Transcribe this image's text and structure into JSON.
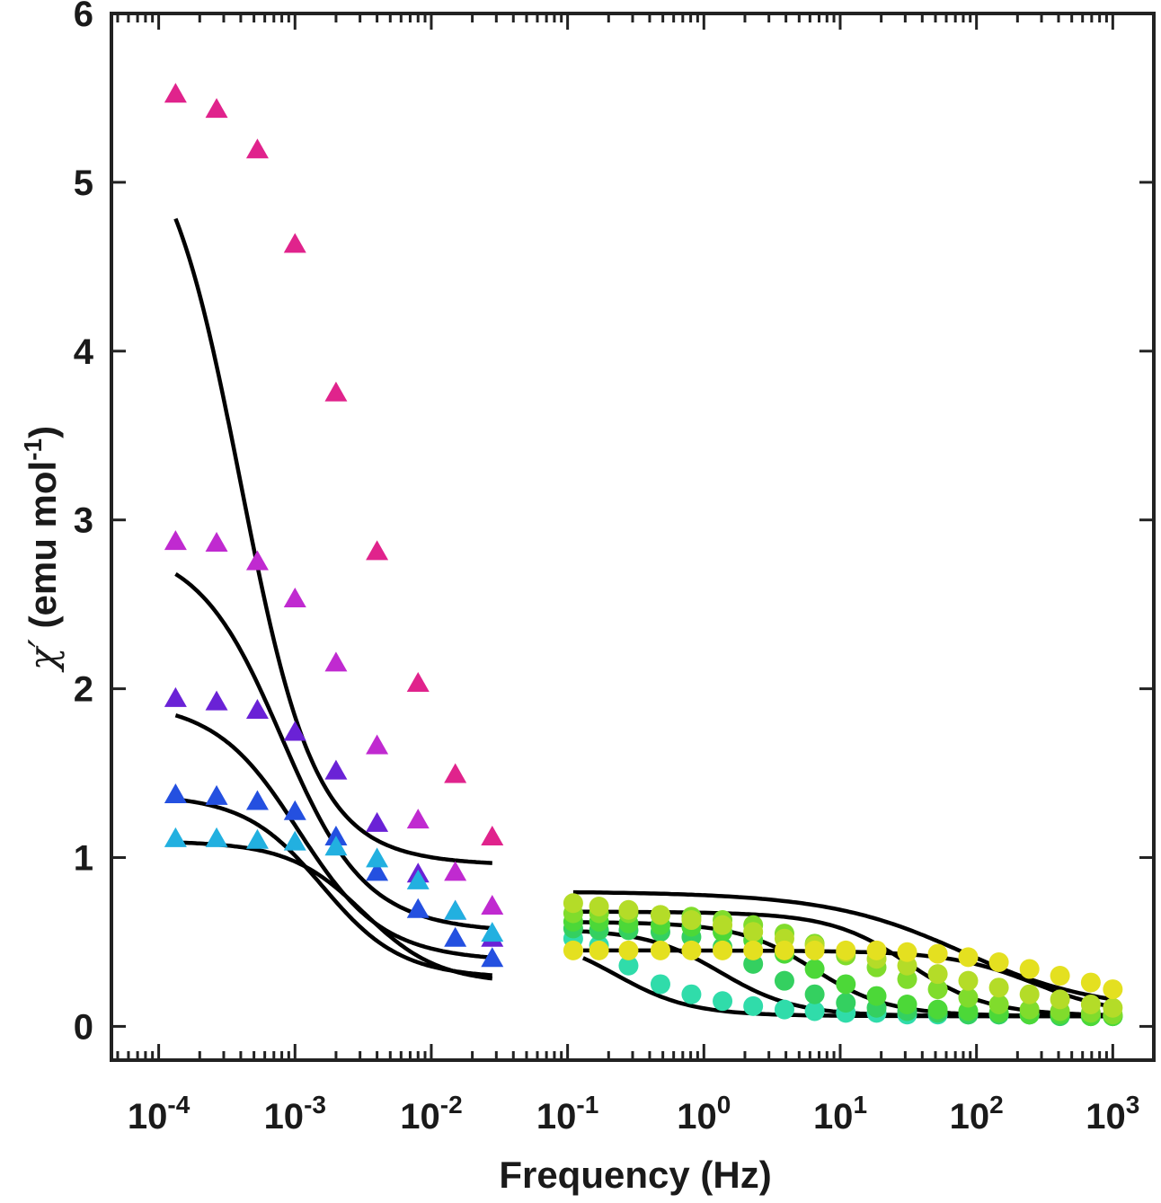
{
  "chart_data": {
    "type": "scatter",
    "x_scale": "log",
    "xlim": [
      4.5e-05,
      2000
    ],
    "ylim": [
      -0.2,
      6.0
    ],
    "xlabel": "Frequency (Hz)",
    "ylabel": {
      "symbol": "χ",
      "prime": "′",
      "text": " (emu mol",
      "sup": "-1",
      "close": ")"
    },
    "x_ticks": [
      {
        "value": 0.0001,
        "base": "10",
        "exp": "-4"
      },
      {
        "value": 0.001,
        "base": "10",
        "exp": "-3"
      },
      {
        "value": 0.01,
        "base": "10",
        "exp": "-2"
      },
      {
        "value": 0.1,
        "base": "10",
        "exp": "-1"
      },
      {
        "value": 1,
        "base": "10",
        "exp": "0"
      },
      {
        "value": 10,
        "base": "10",
        "exp": "1"
      },
      {
        "value": 100,
        "base": "10",
        "exp": "2"
      },
      {
        "value": 1000,
        "base": "10",
        "exp": "3"
      }
    ],
    "y_ticks": [
      {
        "value": 0,
        "label": "0"
      },
      {
        "value": 1,
        "label": "1"
      },
      {
        "value": 2,
        "label": "2"
      },
      {
        "value": 3,
        "label": "3"
      },
      {
        "value": 4,
        "label": "4"
      },
      {
        "value": 5,
        "label": "5"
      },
      {
        "value": 6,
        "label": "6"
      }
    ],
    "fit_color": "#000000",
    "axis_color": "#222222",
    "low_freq_x": [
      0.000133,
      0.000266,
      0.00053,
      0.001,
      0.002,
      0.004,
      0.008,
      0.015,
      0.028
    ],
    "high_freq_x": [
      0.11,
      0.17,
      0.28,
      0.48,
      0.81,
      1.37,
      2.3,
      3.9,
      6.5,
      11,
      18.5,
      31,
      52,
      87,
      146,
      245,
      410,
      690,
      1000
    ],
    "series": [
      {
        "name": "lf-1",
        "marker": "triangle",
        "color": "#e0238c",
        "y": [
          5.52,
          5.43,
          5.19,
          4.63,
          3.75,
          2.81,
          2.03,
          1.49,
          1.12
        ],
        "fit": {
          "chi0": 5.5,
          "chis": 0.95,
          "tau": 400,
          "alpha": 0.1,
          "x_from": 0.000133,
          "x_to": 0.028
        }
      },
      {
        "name": "lf-2",
        "marker": "triangle",
        "color": "#c02ad0",
        "y": [
          2.87,
          2.86,
          2.75,
          2.53,
          2.15,
          1.66,
          1.22,
          0.91,
          0.71
        ],
        "fit": {
          "chi0": 2.88,
          "chis": 0.55,
          "tau": 200,
          "alpha": 0.15,
          "x_from": 0.000133,
          "x_to": 0.028
        }
      },
      {
        "name": "lf-3",
        "marker": "triangle",
        "color": "#6a22d6",
        "y": [
          1.94,
          1.92,
          1.87,
          1.74,
          1.51,
          1.2,
          0.9,
          0.68,
          0.52
        ],
        "fit": {
          "chi0": 1.94,
          "chis": 0.38,
          "tau": 150,
          "alpha": 0.15,
          "x_from": 0.000133,
          "x_to": 0.028
        }
      },
      {
        "name": "lf-4",
        "marker": "triangle",
        "color": "#2450e0",
        "y": [
          1.37,
          1.36,
          1.33,
          1.27,
          1.12,
          0.91,
          0.69,
          0.52,
          0.4
        ],
        "fit": {
          "chi0": 1.38,
          "chis": 0.28,
          "tau": 100,
          "alpha": 0.12,
          "x_from": 0.000133,
          "x_to": 0.028
        }
      },
      {
        "name": "lf-5",
        "marker": "triangle",
        "color": "#22b0e0",
        "y": [
          1.11,
          1.11,
          1.1,
          1.09,
          1.06,
          0.99,
          0.86,
          0.68,
          0.55
        ],
        "fit": {
          "chi0": 1.1,
          "chis": 0.25,
          "tau": 50,
          "alpha": 0.1,
          "x_from": 0.000133,
          "x_to": 0.028
        }
      },
      {
        "name": "hf-1",
        "marker": "circle",
        "color": "#30dcaa",
        "y": [
          0.52,
          0.48,
          0.36,
          0.25,
          0.19,
          0.15,
          0.12,
          0.1,
          0.09,
          0.08,
          0.08,
          0.07,
          0.07,
          0.07,
          0.07,
          0.07,
          0.07,
          0.06,
          0.06
        ],
        "fit": {
          "chi0": 0.55,
          "chis": 0.06,
          "tau": 0.7,
          "alpha": 0.1,
          "x_from": 0.13,
          "x_to": 1000
        }
      },
      {
        "name": "hf-2",
        "marker": "circle",
        "color": "#34d060",
        "y": [
          0.58,
          0.57,
          0.57,
          0.56,
          0.53,
          0.47,
          0.37,
          0.27,
          0.19,
          0.14,
          0.11,
          0.09,
          0.08,
          0.07,
          0.07,
          0.07,
          0.06,
          0.06,
          0.06
        ],
        "fit": {
          "chi0": 0.58,
          "chis": 0.06,
          "tau": 0.12,
          "alpha": 0.1,
          "x_from": 0.11,
          "x_to": 1000
        }
      },
      {
        "name": "hf-3",
        "marker": "circle",
        "color": "#4cd838",
        "y": [
          0.62,
          0.62,
          0.61,
          0.6,
          0.59,
          0.56,
          0.51,
          0.43,
          0.34,
          0.25,
          0.18,
          0.13,
          0.1,
          0.09,
          0.08,
          0.07,
          0.07,
          0.06,
          0.06
        ],
        "fit": {
          "chi0": 0.62,
          "chis": 0.06,
          "tau": 0.025,
          "alpha": 0.1,
          "x_from": 0.11,
          "x_to": 1000
        }
      },
      {
        "name": "hf-4",
        "marker": "circle",
        "color": "#80dc2c",
        "y": [
          0.67,
          0.67,
          0.67,
          0.66,
          0.65,
          0.63,
          0.6,
          0.55,
          0.49,
          0.42,
          0.35,
          0.28,
          0.22,
          0.17,
          0.13,
          0.1,
          0.09,
          0.08,
          0.07
        ],
        "fit": {
          "chi0": 0.68,
          "chis": 0.06,
          "tau": 0.005,
          "alpha": 0.12,
          "x_from": 0.11,
          "x_to": 1000
        }
      },
      {
        "name": "hf-5",
        "marker": "circle",
        "color": "#b4dc28",
        "y": [
          0.73,
          0.71,
          0.69,
          0.66,
          0.63,
          0.6,
          0.56,
          0.52,
          0.48,
          0.44,
          0.4,
          0.36,
          0.31,
          0.27,
          0.23,
          0.19,
          0.16,
          0.13,
          0.11
        ],
        "fit": {
          "chi0": 0.8,
          "chis": 0.08,
          "tau": 0.002,
          "alpha": 0.35,
          "x_from": 0.11,
          "x_to": 1000
        }
      },
      {
        "name": "hf-6",
        "marker": "circle",
        "color": "#e4e020",
        "y": [
          0.45,
          0.45,
          0.45,
          0.45,
          0.45,
          0.45,
          0.45,
          0.45,
          0.45,
          0.45,
          0.45,
          0.44,
          0.43,
          0.41,
          0.38,
          0.34,
          0.3,
          0.26,
          0.22
        ],
        "fit": {
          "chi0": 0.45,
          "chis": 0.06,
          "tau": 0.0006,
          "alpha": 0.15,
          "x_from": 0.13,
          "x_to": 1000
        }
      }
    ]
  }
}
